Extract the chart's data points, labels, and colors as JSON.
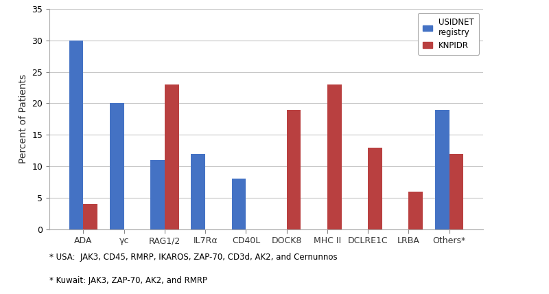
{
  "categories": [
    "ADA",
    "γc",
    "RAG1/2",
    "IL7Rα",
    "CD40L",
    "DOCK8",
    "MHC II",
    "DCLRE1C",
    "LRBA",
    "Others*"
  ],
  "usidnet": [
    30,
    20,
    11,
    12,
    8,
    0,
    0,
    0,
    0,
    19
  ],
  "knpidr": [
    4,
    0,
    23,
    0,
    0,
    19,
    23,
    13,
    6,
    12
  ],
  "usidnet_color": "#4472C4",
  "knpidr_color": "#B94040",
  "ylabel": "Percent of Patients",
  "ylim": [
    0,
    35
  ],
  "yticks": [
    0,
    5,
    10,
    15,
    20,
    25,
    30,
    35
  ],
  "legend_labels": [
    "USIDNET\nregistry",
    "KNPIDR"
  ],
  "footnote1": "* USA:  JAK3, CD45, RMRP, IKAROS, ZAP-70, CD3d, AK2, and Cernunnos",
  "footnote2": "* Kuwait: JAK3, ZAP-70, AK2, and RMRP",
  "bar_width": 0.35,
  "fig_facecolor": "#ffffff",
  "ax_facecolor": "#ffffff",
  "grid_color": "#c8c8c8"
}
